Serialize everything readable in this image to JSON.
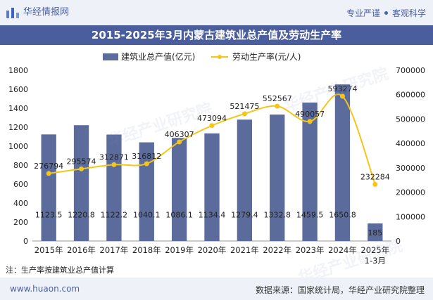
{
  "header": {
    "brand": "华经情报网",
    "slogan_left": "专业严谨",
    "slogan_right": "客观科学",
    "title": "2015-2025年3月内蒙古建筑业总产值及劳动生产率"
  },
  "footer": {
    "note": "注：生产率按建筑业总产值计算",
    "site": "www.huaon.com",
    "source": "数据来源：国家统计局，华经产业研究院整理"
  },
  "watermarks": [
    "华经产业研究院",
    "华经产业研究院",
    "华经产业研究院"
  ],
  "colors": {
    "bar": "#5b6c9c",
    "line": "#f5c518",
    "header_bg": "#4a5d9c"
  },
  "chart_data": {
    "type": "bar",
    "categories": [
      "2015年",
      "2016年",
      "2017年",
      "2018年",
      "2019年",
      "2020年",
      "2021年",
      "2022年",
      "2023年",
      "2024年",
      "2025年\n1-3月"
    ],
    "series": [
      {
        "name": "建筑业总产值(亿元)",
        "type": "bar",
        "axis": "left",
        "values": [
          1123.5,
          1220.8,
          1122.2,
          1040.1,
          1086.1,
          1134.4,
          1279.4,
          1332.8,
          1459.5,
          1650.8,
          185
        ],
        "labels": [
          "1123.5",
          "1220.8",
          "1122.2",
          "1040.1",
          "1086.1",
          "1134.4",
          "1279.4",
          "1332.8",
          "1459.5",
          "1650.8",
          "185"
        ]
      },
      {
        "name": "劳动生产率(元/人)",
        "type": "line",
        "axis": "right",
        "values": [
          276794,
          295574,
          312871,
          316812,
          406307,
          473094,
          521475,
          552567,
          490057,
          593274,
          232284
        ],
        "labels": [
          "276794",
          "295574",
          "312871",
          "316812",
          "406307",
          "473094",
          "521475",
          "552567",
          "490057",
          "593274",
          "232284"
        ]
      }
    ],
    "y_left": {
      "min": 0,
      "max": 1800,
      "ticks": [
        "0",
        "200",
        "400",
        "600",
        "800",
        "1000",
        "1200",
        "1400",
        "1600",
        "1800"
      ]
    },
    "y_right": {
      "min": 0,
      "max": 700000,
      "ticks": [
        "0",
        "100000",
        "200000",
        "300000",
        "400000",
        "500000",
        "600000",
        "700000"
      ]
    },
    "legend_position": "top-center",
    "grid": false
  }
}
